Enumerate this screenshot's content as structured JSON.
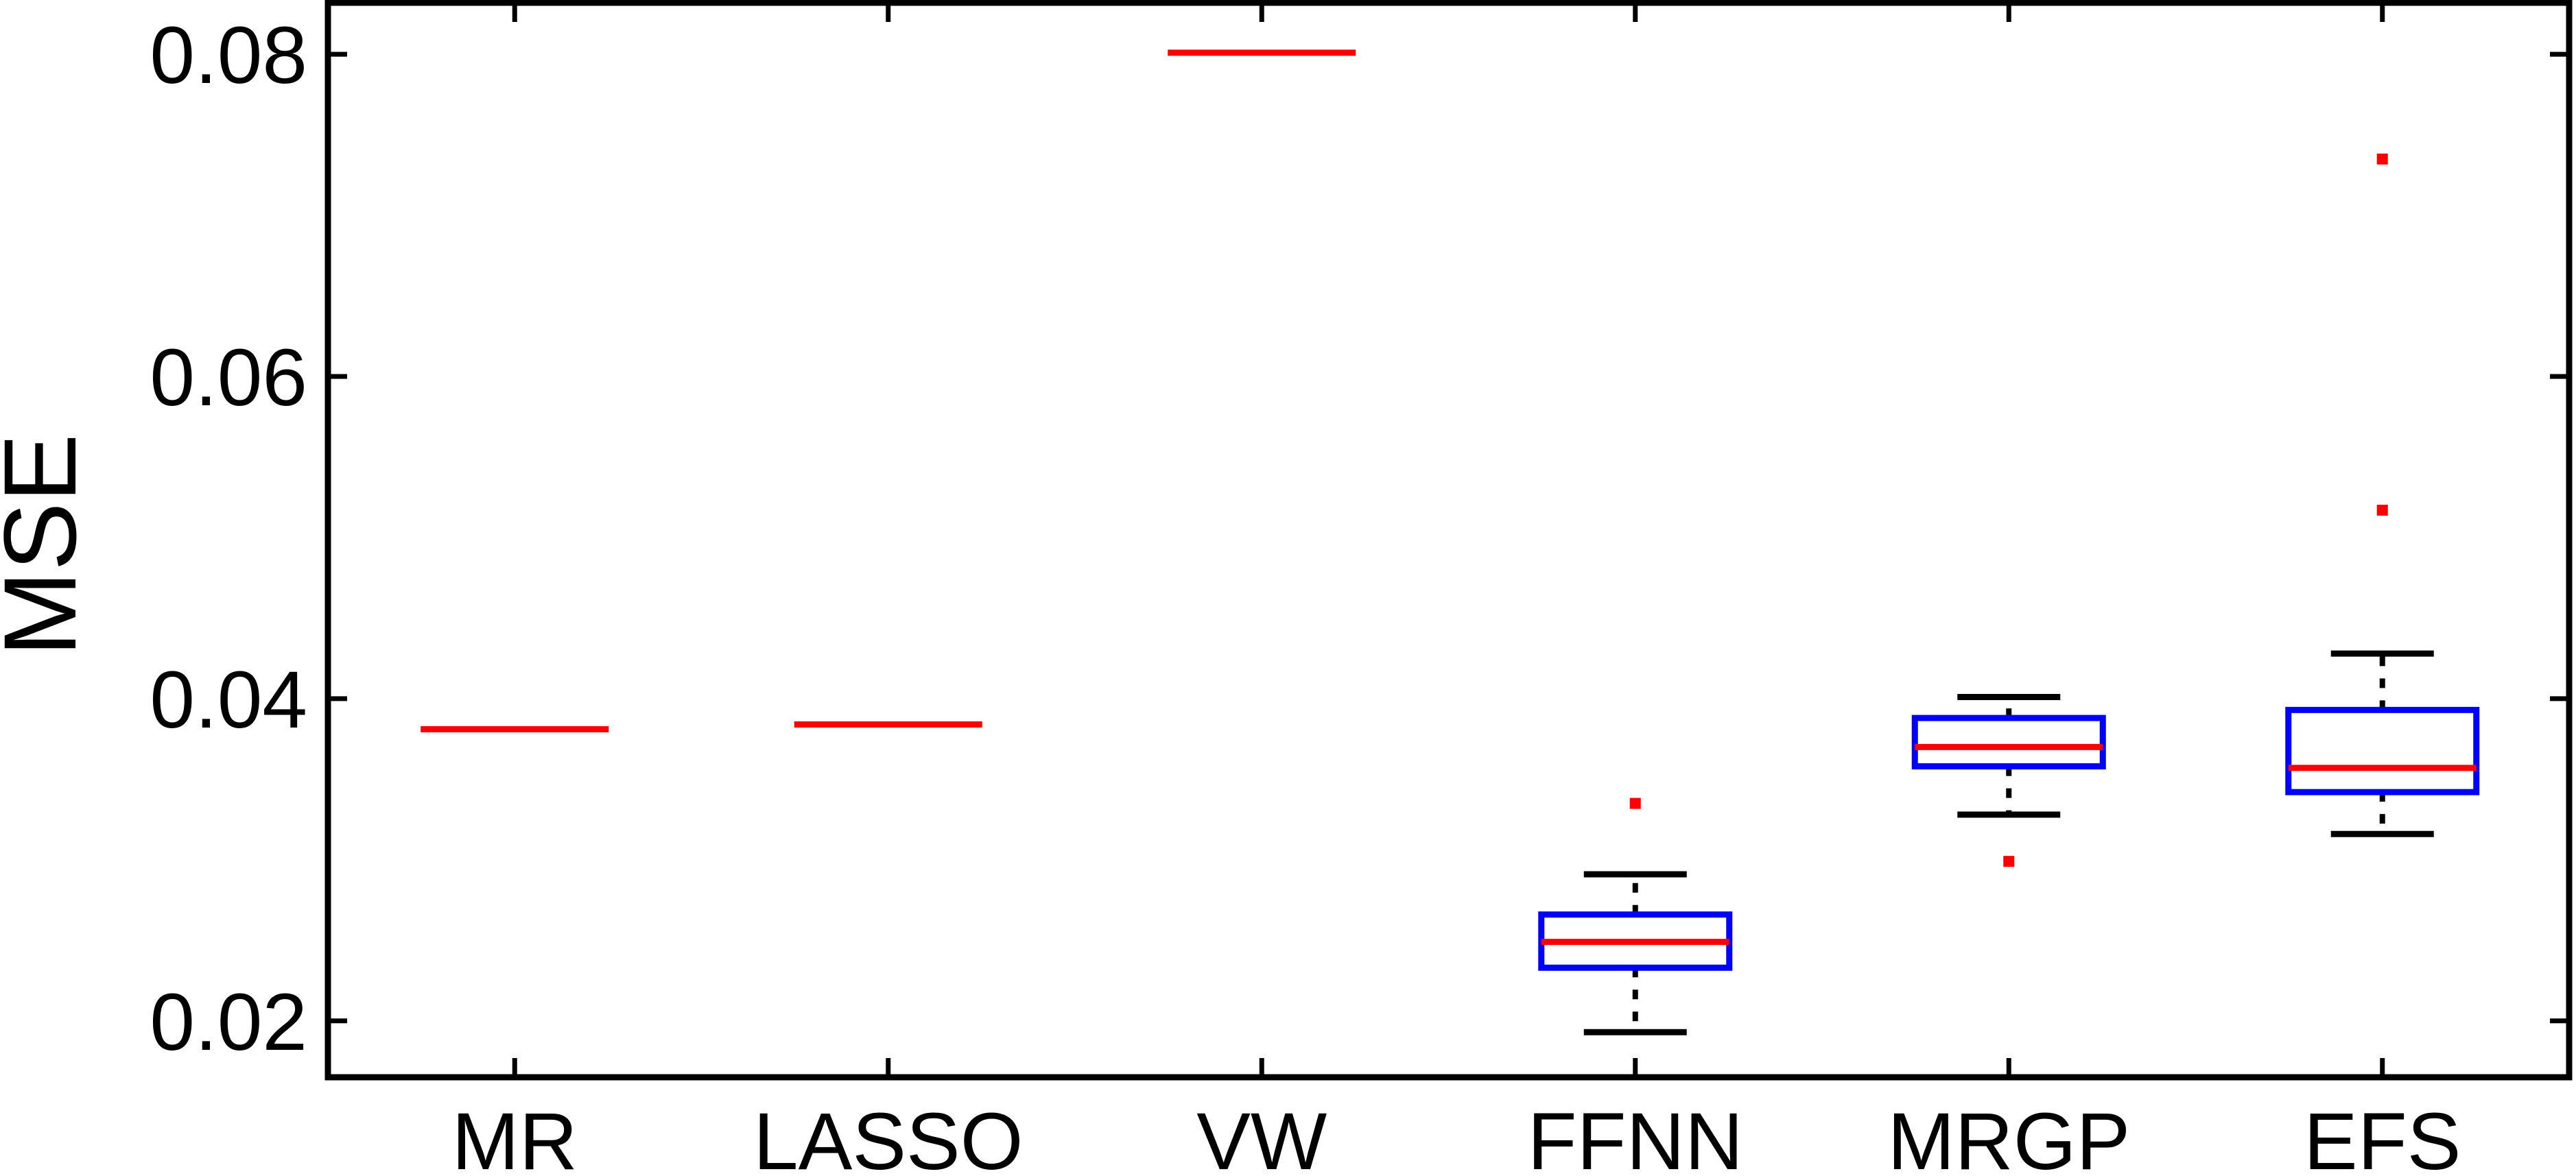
{
  "chart_data": {
    "type": "box",
    "title": "",
    "xlabel": "",
    "ylabel": "MSE",
    "ylim": [
      0.0165,
      0.0832
    ],
    "yticks": [
      0.02,
      0.04,
      0.06,
      0.08
    ],
    "ytick_labels": [
      "0.02",
      "0.04",
      "0.06",
      "0.08"
    ],
    "grid": false,
    "legend": "none",
    "categories": [
      "MR",
      "LASSO",
      "VW",
      "FFNN",
      "MRGP",
      "EFS"
    ],
    "boxes": [
      {
        "name": "MR",
        "median": 0.0381,
        "q1": 0.0381,
        "q3": 0.0381,
        "whisker_low": 0.0381,
        "whisker_high": 0.0381,
        "outliers": []
      },
      {
        "name": "LASSO",
        "median": 0.0384,
        "q1": 0.0384,
        "q3": 0.0384,
        "whisker_low": 0.0384,
        "whisker_high": 0.0384,
        "outliers": []
      },
      {
        "name": "VW",
        "median": 0.0801,
        "q1": 0.0801,
        "q3": 0.0801,
        "whisker_low": 0.0801,
        "whisker_high": 0.0801,
        "outliers": []
      },
      {
        "name": "FFNN",
        "median": 0.0249,
        "q1": 0.0233,
        "q3": 0.0266,
        "whisker_low": 0.0193,
        "whisker_high": 0.0291,
        "outliers": [
          0.0335
        ]
      },
      {
        "name": "MRGP",
        "median": 0.037,
        "q1": 0.0358,
        "q3": 0.0388,
        "whisker_low": 0.0328,
        "whisker_high": 0.0401,
        "outliers": [
          0.0299
        ]
      },
      {
        "name": "EFS",
        "median": 0.0357,
        "q1": 0.0342,
        "q3": 0.0393,
        "whisker_low": 0.0316,
        "whisker_high": 0.0428,
        "outliers": [
          0.0517,
          0.0735
        ]
      }
    ],
    "colors": {
      "box": "#0000ff",
      "median": "#ff0000",
      "whisker": "#000000",
      "outlier": "#ff0000",
      "axis": "#000000"
    }
  }
}
